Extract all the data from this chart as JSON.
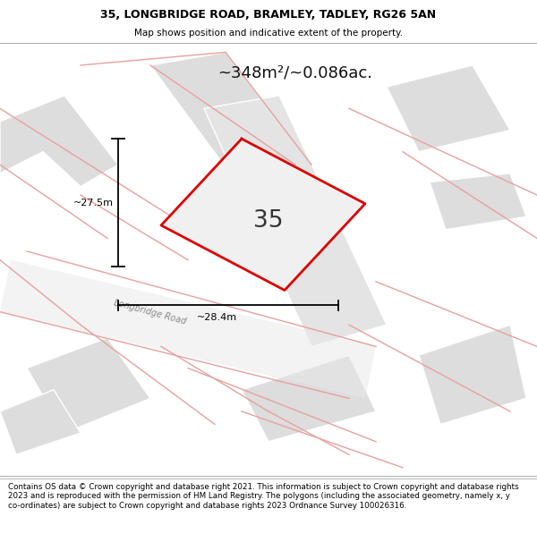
{
  "title_line1": "35, LONGBRIDGE ROAD, BRAMLEY, TADLEY, RG26 5AN",
  "title_line2": "Map shows position and indicative extent of the property.",
  "area_text": "~348m²/~0.086ac.",
  "label_35": "35",
  "dim_vertical": "~27.5m",
  "dim_horizontal": "~28.4m",
  "road_label": "Longbridge Road",
  "footer_text": "Contains OS data © Crown copyright and database right 2021. This information is subject to Crown copyright and database rights 2023 and is reproduced with the permission of HM Land Registry. The polygons (including the associated geometry, namely x, y co-ordinates) are subject to Crown copyright and database rights 2023 Ordnance Survey 100026316.",
  "bg_color": "#f5f5f5",
  "boundary_color": "#dd0000",
  "road_line_color": "#e8a0a0",
  "building_fill": "#dddddd",
  "building_edge": "#ffffff",
  "road_fill": "#e4e4e4",
  "header_bg": "#ffffff",
  "footer_bg": "#ffffff",
  "map_bg": "#ffffff",
  "prop_fill": "#f0f0f0"
}
